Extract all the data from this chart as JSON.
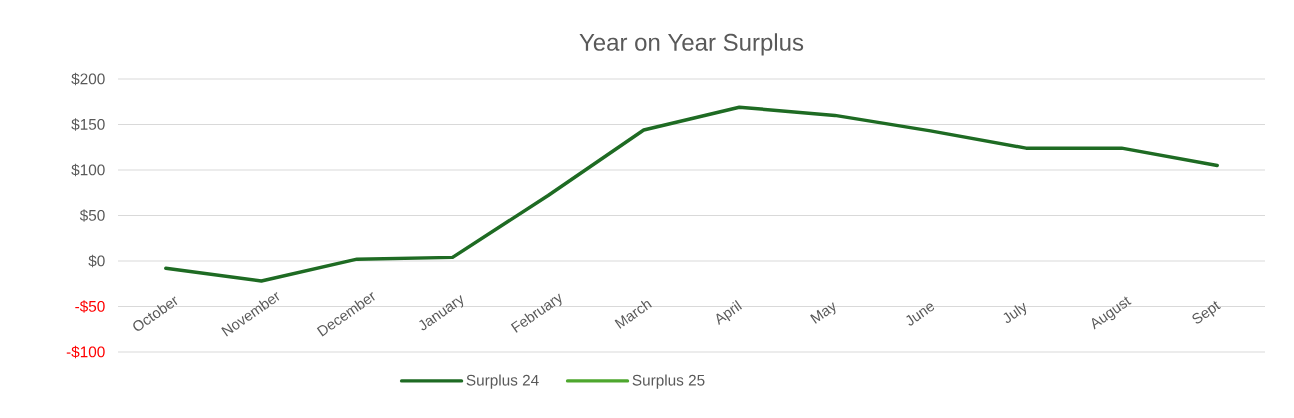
{
  "chart_data": {
    "type": "line",
    "title": "Year on Year Surplus",
    "categories": [
      "October",
      "November",
      "December",
      "January",
      "February",
      "March",
      "April",
      "May",
      "June",
      "July",
      "August",
      "Sept"
    ],
    "series": [
      {
        "name": "Surplus 24",
        "color": "#1e6b23",
        "values": [
          -8,
          -22,
          2,
          4,
          72,
          144,
          169,
          160,
          143,
          124,
          124,
          105
        ]
      },
      {
        "name": "Surplus 25",
        "color": "#4ea72e",
        "values": [
          null,
          null,
          null,
          null,
          null,
          null,
          null,
          null,
          null,
          null,
          null,
          null
        ]
      }
    ],
    "ylim": [
      -100,
      200
    ],
    "yticks": [
      {
        "value": -100,
        "label": "-$100"
      },
      {
        "value": -50,
        "label": "-$50"
      },
      {
        "value": 0,
        "label": "$0"
      },
      {
        "value": 50,
        "label": "$50"
      },
      {
        "value": 100,
        "label": "$100"
      },
      {
        "value": 150,
        "label": "$150"
      },
      {
        "value": 200,
        "label": "$200"
      }
    ],
    "grid": "y",
    "legend": "bottom",
    "marker": "none",
    "line_style": "solid"
  }
}
